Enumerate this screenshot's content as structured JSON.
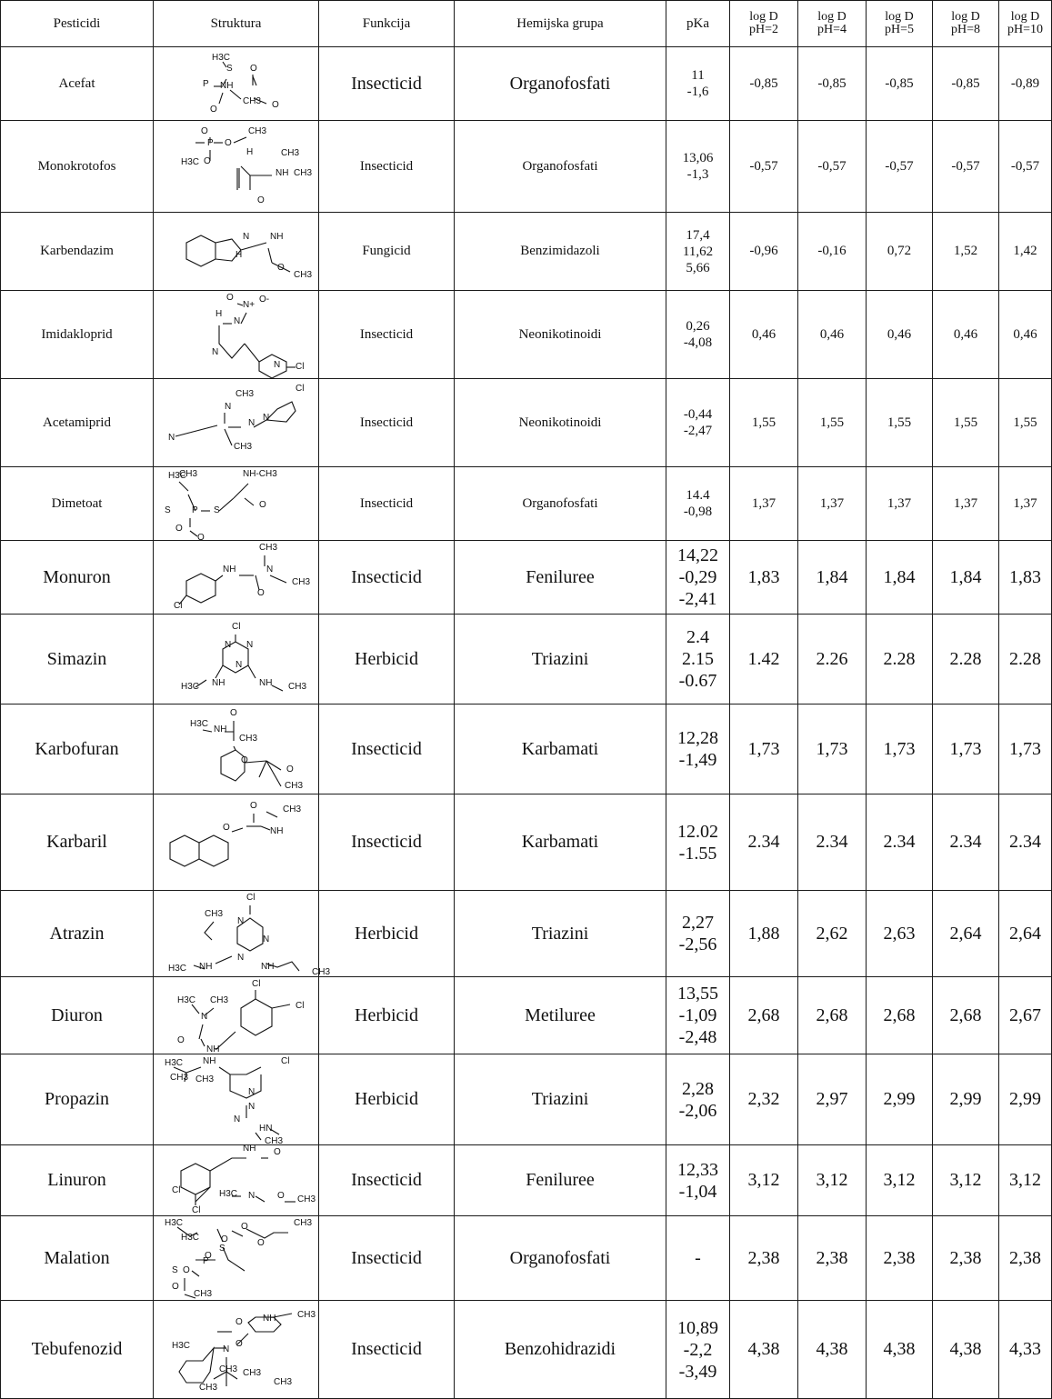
{
  "columns": [
    "Pesticidi",
    "Struktura",
    "Funkcija",
    "Hemijska grupa",
    "pKa",
    "log D",
    "pH=2",
    "pH=4",
    "pH=5",
    "pH=8",
    "pH=10"
  ],
  "rows": [
    {
      "name": "Acefat",
      "function": "Insecticid",
      "group": "Organofosfati",
      "pka": [
        "11",
        "-1,6"
      ],
      "logd": [
        "-0,85",
        "-0,85",
        "-0,85",
        "-0,85",
        "-0,89"
      ],
      "structure": "acephate-structure",
      "atoms": [
        "H3C",
        "S",
        "O",
        "P",
        "NH",
        "CH3",
        "O",
        "O"
      ]
    },
    {
      "name": "Monokrotofos",
      "function": "Insecticid",
      "group": "Organofosfati",
      "pka": [
        "13,06",
        "-1,3"
      ],
      "logd": [
        "-0,57",
        "-0,57",
        "-0,57",
        "-0,57",
        "-0,57"
      ],
      "structure": "monocrotophos-structure",
      "atoms": [
        "O",
        "P",
        "O",
        "CH3",
        "H3C",
        "O",
        "H",
        "CH3",
        "NH",
        "CH3",
        "O"
      ]
    },
    {
      "name": "Karbendazim",
      "function": "Fungicid",
      "group": "Benzimidazoli",
      "pka": [
        "17,4",
        "11,62",
        "5,66"
      ],
      "logd": [
        "-0,96",
        "-0,16",
        "0,72",
        "1,52",
        "1,42"
      ],
      "structure": "carbendazim-structure",
      "atoms": [
        "N",
        "NH",
        "H",
        "O",
        "CH3"
      ]
    },
    {
      "name": "Imidakloprid",
      "function": "Insecticid",
      "group": "Neonikotinoidi",
      "pka": [
        "0,26",
        "-4,08"
      ],
      "logd": [
        "0,46",
        "0,46",
        "0,46",
        "0,46",
        "0,46"
      ],
      "structure": "imidacloprid-structure",
      "atoms": [
        "O",
        "N+",
        "O-",
        "H",
        "N",
        "N",
        "N",
        "Cl"
      ]
    },
    {
      "name": "Acetamiprid",
      "function": "Insecticid",
      "group": "Neonikotinoidi",
      "pka": [
        "-0,44",
        "-2,47"
      ],
      "logd": [
        "1,55",
        "1,55",
        "1,55",
        "1,55",
        "1,55"
      ],
      "structure": "acetamiprid-structure",
      "atoms": [
        "CH3",
        "N",
        "N",
        "N",
        "Cl",
        "N",
        "CH3"
      ]
    },
    {
      "name": "Dimetoat",
      "function": "Insecticid",
      "group": "Organofosfati",
      "pka": [
        "14.4",
        "-0,98"
      ],
      "logd": [
        "1,37",
        "1,37",
        "1,37",
        "1,37",
        "1,37"
      ],
      "structure": "dimethoate-structure",
      "atoms": [
        "H3C",
        "NH-CH3",
        "O",
        "S",
        "P",
        "S",
        "O",
        "O",
        "CH3"
      ]
    },
    {
      "name": "Monuron",
      "function": "Insecticid",
      "group": "Feniluree",
      "pka": [
        "14,22",
        "-0,29",
        "-2,41"
      ],
      "logd": [
        "1,83",
        "1,84",
        "1,84",
        "1,84",
        "1,83"
      ],
      "big": true,
      "structure": "monuron-structure",
      "atoms": [
        "CH3",
        "NH",
        "N",
        "CH3",
        "O",
        "Cl"
      ]
    },
    {
      "name": "Simazin",
      "function": "Herbicid",
      "group": "Triazini",
      "pka": [
        "2.4",
        "2.15",
        "-0.67"
      ],
      "logd": [
        "1.42",
        "2.26",
        "2.28",
        "2.28",
        "2.28"
      ],
      "big": true,
      "structure": "simazine-structure",
      "atoms": [
        "Cl",
        "N",
        "N",
        "N",
        "H3C",
        "NH",
        "NH",
        "CH3"
      ]
    },
    {
      "name": "Karbofuran",
      "function": "Insecticid",
      "group": "Karbamati",
      "pka": [
        "12,28",
        "-1,49"
      ],
      "logd": [
        "1,73",
        "1,73",
        "1,73",
        "1,73",
        "1,73"
      ],
      "big": true,
      "structure": "carbofuran-structure",
      "atoms": [
        "O",
        "H3C",
        "NH",
        "O",
        "O",
        "CH3",
        "CH3"
      ]
    },
    {
      "name": "Karbaril",
      "function": "Insecticid",
      "group": "Karbamati",
      "pka": [
        "12.02",
        "-1.55"
      ],
      "logd": [
        "2.34",
        "2.34",
        "2.34",
        "2.34",
        "2.34"
      ],
      "big": true,
      "structure": "carbaryl-structure",
      "atoms": [
        "O",
        "CH3",
        "O",
        "NH"
      ]
    },
    {
      "name": "Atrazin",
      "function": "Herbicid",
      "group": "Triazini",
      "pka": [
        "2,27",
        "-2,56"
      ],
      "logd": [
        "1,88",
        "2,62",
        "2,63",
        "2,64",
        "2,64"
      ],
      "big": true,
      "structure": "atrazine-structure",
      "atoms": [
        "Cl",
        "CH3",
        "N",
        "N",
        "N",
        "H3C",
        "NH",
        "NH",
        "CH3"
      ]
    },
    {
      "name": "Diuron",
      "function": "Herbicid",
      "group": "Metiluree",
      "pka": [
        "13,55",
        "-1,09",
        "-2,48"
      ],
      "logd": [
        "2,68",
        "2,68",
        "2,68",
        "2,68",
        "2,67"
      ],
      "big": true,
      "structure": "diuron-structure",
      "atoms": [
        "Cl",
        "H3C",
        "CH3",
        "N",
        "Cl",
        "O",
        "NH"
      ]
    },
    {
      "name": "Propazin",
      "function": "Herbicid",
      "group": "Triazini",
      "pka": [
        "2,28",
        "-2,06"
      ],
      "logd": [
        "2,32",
        "2,97",
        "2,99",
        "2,99",
        "2,99"
      ],
      "big": true,
      "structure": "propazine-structure",
      "atoms": [
        "H3C",
        "NH",
        "Cl",
        "CH3",
        "N",
        "N",
        "N",
        "HN",
        "CH3",
        "CH3"
      ]
    },
    {
      "name": "Linuron",
      "function": "Insecticid",
      "group": "Feniluree",
      "pka": [
        "12,33",
        "-1,04"
      ],
      "logd": [
        "3,12",
        "3,12",
        "3,12",
        "3,12",
        "3,12"
      ],
      "big": true,
      "structure": "linuron-structure",
      "atoms": [
        "NH",
        "O",
        "Cl",
        "H3C",
        "N",
        "O",
        "CH3",
        "Cl"
      ]
    },
    {
      "name": "Malation",
      "function": "Insecticid",
      "group": "Organofosfati",
      "pka": [
        "-"
      ],
      "logd": [
        "2,38",
        "2,38",
        "2,38",
        "2,38",
        "2,38"
      ],
      "big": true,
      "structure": "malathion-structure",
      "atoms": [
        "H3C",
        "O",
        "O",
        "CH3",
        "H3C",
        "O",
        "O",
        "O",
        "S",
        "P",
        "S",
        "O",
        "CH3"
      ]
    },
    {
      "name": "Tebufenozid",
      "function": "Insecticid",
      "group": "Benzohidrazidi",
      "pka": [
        "10,89",
        "-2,2",
        "-3,49"
      ],
      "logd": [
        "4,38",
        "4,38",
        "4,38",
        "4,38",
        "4,33"
      ],
      "big": true,
      "structure": "tebufenozide-structure",
      "atoms": [
        "O",
        "NH",
        "CH3",
        "H3C",
        "O",
        "N",
        "CH3",
        "CH3",
        "CH3",
        "CH3"
      ]
    }
  ]
}
